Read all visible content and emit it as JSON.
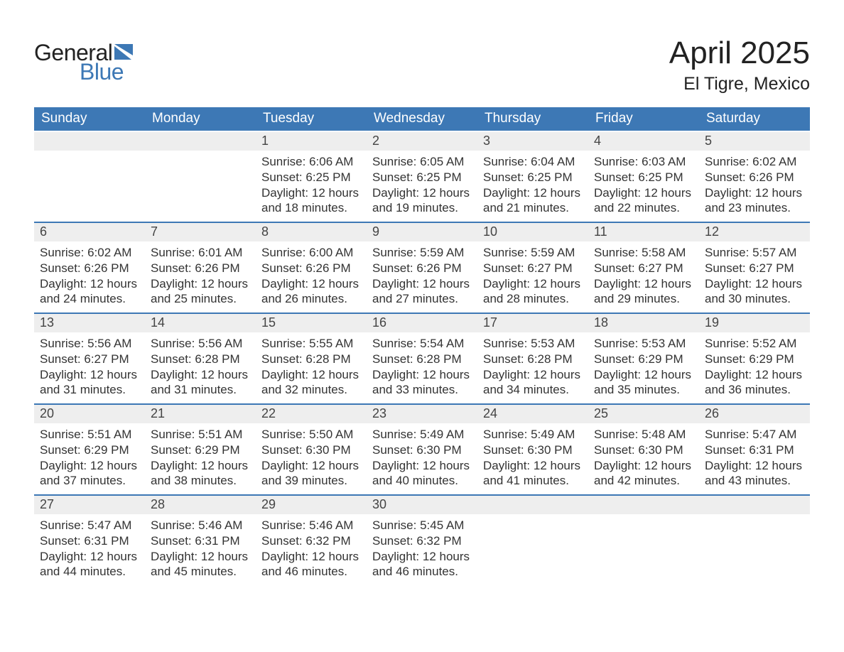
{
  "logo": {
    "word1": "General",
    "word2": "Blue",
    "flag_color": "#3d78b5"
  },
  "title": "April 2025",
  "location": "El Tigre, Mexico",
  "colors": {
    "header_bg": "#3d78b5",
    "header_text": "#ffffff",
    "daynum_bg": "#eeeeee",
    "topbar": "#3d78b5",
    "body_text": "#333333",
    "page_bg": "#ffffff"
  },
  "day_headers": [
    "Sunday",
    "Monday",
    "Tuesday",
    "Wednesday",
    "Thursday",
    "Friday",
    "Saturday"
  ],
  "weeks": [
    [
      {
        "empty": true
      },
      {
        "empty": true
      },
      {
        "n": "1",
        "sunrise": "6:06 AM",
        "sunset": "6:25 PM",
        "daylight": "12 hours and 18 minutes."
      },
      {
        "n": "2",
        "sunrise": "6:05 AM",
        "sunset": "6:25 PM",
        "daylight": "12 hours and 19 minutes."
      },
      {
        "n": "3",
        "sunrise": "6:04 AM",
        "sunset": "6:25 PM",
        "daylight": "12 hours and 21 minutes."
      },
      {
        "n": "4",
        "sunrise": "6:03 AM",
        "sunset": "6:25 PM",
        "daylight": "12 hours and 22 minutes."
      },
      {
        "n": "5",
        "sunrise": "6:02 AM",
        "sunset": "6:26 PM",
        "daylight": "12 hours and 23 minutes."
      }
    ],
    [
      {
        "n": "6",
        "sunrise": "6:02 AM",
        "sunset": "6:26 PM",
        "daylight": "12 hours and 24 minutes."
      },
      {
        "n": "7",
        "sunrise": "6:01 AM",
        "sunset": "6:26 PM",
        "daylight": "12 hours and 25 minutes."
      },
      {
        "n": "8",
        "sunrise": "6:00 AM",
        "sunset": "6:26 PM",
        "daylight": "12 hours and 26 minutes."
      },
      {
        "n": "9",
        "sunrise": "5:59 AM",
        "sunset": "6:26 PM",
        "daylight": "12 hours and 27 minutes."
      },
      {
        "n": "10",
        "sunrise": "5:59 AM",
        "sunset": "6:27 PM",
        "daylight": "12 hours and 28 minutes."
      },
      {
        "n": "11",
        "sunrise": "5:58 AM",
        "sunset": "6:27 PM",
        "daylight": "12 hours and 29 minutes."
      },
      {
        "n": "12",
        "sunrise": "5:57 AM",
        "sunset": "6:27 PM",
        "daylight": "12 hours and 30 minutes."
      }
    ],
    [
      {
        "n": "13",
        "sunrise": "5:56 AM",
        "sunset": "6:27 PM",
        "daylight": "12 hours and 31 minutes."
      },
      {
        "n": "14",
        "sunrise": "5:56 AM",
        "sunset": "6:28 PM",
        "daylight": "12 hours and 31 minutes."
      },
      {
        "n": "15",
        "sunrise": "5:55 AM",
        "sunset": "6:28 PM",
        "daylight": "12 hours and 32 minutes."
      },
      {
        "n": "16",
        "sunrise": "5:54 AM",
        "sunset": "6:28 PM",
        "daylight": "12 hours and 33 minutes."
      },
      {
        "n": "17",
        "sunrise": "5:53 AM",
        "sunset": "6:28 PM",
        "daylight": "12 hours and 34 minutes."
      },
      {
        "n": "18",
        "sunrise": "5:53 AM",
        "sunset": "6:29 PM",
        "daylight": "12 hours and 35 minutes."
      },
      {
        "n": "19",
        "sunrise": "5:52 AM",
        "sunset": "6:29 PM",
        "daylight": "12 hours and 36 minutes."
      }
    ],
    [
      {
        "n": "20",
        "sunrise": "5:51 AM",
        "sunset": "6:29 PM",
        "daylight": "12 hours and 37 minutes."
      },
      {
        "n": "21",
        "sunrise": "5:51 AM",
        "sunset": "6:29 PM",
        "daylight": "12 hours and 38 minutes."
      },
      {
        "n": "22",
        "sunrise": "5:50 AM",
        "sunset": "6:30 PM",
        "daylight": "12 hours and 39 minutes."
      },
      {
        "n": "23",
        "sunrise": "5:49 AM",
        "sunset": "6:30 PM",
        "daylight": "12 hours and 40 minutes."
      },
      {
        "n": "24",
        "sunrise": "5:49 AM",
        "sunset": "6:30 PM",
        "daylight": "12 hours and 41 minutes."
      },
      {
        "n": "25",
        "sunrise": "5:48 AM",
        "sunset": "6:30 PM",
        "daylight": "12 hours and 42 minutes."
      },
      {
        "n": "26",
        "sunrise": "5:47 AM",
        "sunset": "6:31 PM",
        "daylight": "12 hours and 43 minutes."
      }
    ],
    [
      {
        "n": "27",
        "sunrise": "5:47 AM",
        "sunset": "6:31 PM",
        "daylight": "12 hours and 44 minutes."
      },
      {
        "n": "28",
        "sunrise": "5:46 AM",
        "sunset": "6:31 PM",
        "daylight": "12 hours and 45 minutes."
      },
      {
        "n": "29",
        "sunrise": "5:46 AM",
        "sunset": "6:32 PM",
        "daylight": "12 hours and 46 minutes."
      },
      {
        "n": "30",
        "sunrise": "5:45 AM",
        "sunset": "6:32 PM",
        "daylight": "12 hours and 46 minutes."
      },
      {
        "empty": true
      },
      {
        "empty": true
      },
      {
        "empty": true
      }
    ]
  ],
  "labels": {
    "sunrise": "Sunrise: ",
    "sunset": "Sunset: ",
    "daylight": "Daylight: "
  }
}
